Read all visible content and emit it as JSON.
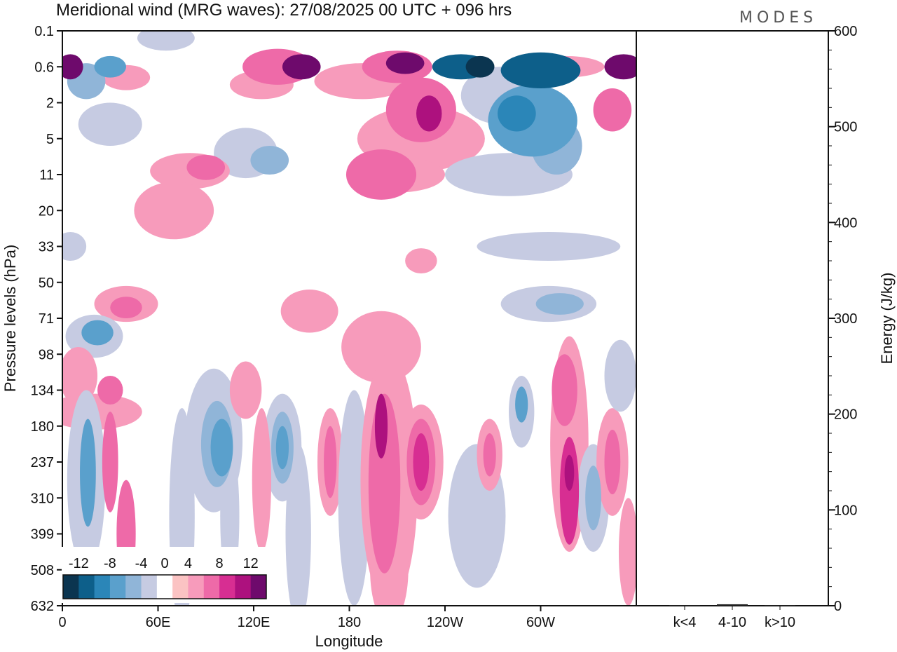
{
  "chart_data": {
    "type": "heatmap",
    "title": "Meridional wind (MRG waves):  27/08/2025  00 UTC  + 096 hrs",
    "xlabel": "Longitude",
    "ylabel": "Pressure levels (hPa)",
    "y2label": "Energy (J/kg)",
    "logo": "MODES",
    "x_ticks": [
      {
        "lon": 0,
        "label": "0"
      },
      {
        "lon": 60,
        "label": "60E"
      },
      {
        "lon": 120,
        "label": "120E"
      },
      {
        "lon": 180,
        "label": "180"
      },
      {
        "lon": 240,
        "label": "120W"
      },
      {
        "lon": 300,
        "label": "60W"
      }
    ],
    "xlim": [
      0,
      360
    ],
    "pressure_levels": [
      "0.1",
      "0.6",
      "2",
      "5",
      "11",
      "20",
      "33",
      "50",
      "71",
      "98",
      "134",
      "180",
      "237",
      "310",
      "399",
      "508",
      "632"
    ],
    "colorbar": {
      "labels": [
        "-12",
        "-8",
        "-4",
        "0",
        "4",
        "8",
        "12"
      ],
      "levels": [
        -14,
        -12,
        -10,
        -8,
        -6,
        -4,
        -2,
        2,
        4,
        6,
        8,
        10,
        12,
        14
      ],
      "colors": [
        "#0b3550",
        "#0d5f8a",
        "#2b86b8",
        "#5aa0cc",
        "#90b5d8",
        "#c6cbe2",
        "#ffffff",
        "#fbc3c3",
        "#f79bbb",
        "#ee6aa8",
        "#d72e92",
        "#ad117e",
        "#6e0a6c"
      ]
    },
    "contour_blobs": [
      {
        "lon": 5,
        "p": 1,
        "ry": 0.35,
        "rx": 8,
        "v": 12
      },
      {
        "lon": 15,
        "p": 1.4,
        "ry": 0.5,
        "rx": 12,
        "v": -6
      },
      {
        "lon": 30,
        "p": 1.0,
        "ry": 0.3,
        "rx": 10,
        "v": -8
      },
      {
        "lon": 40,
        "p": 1.3,
        "ry": 0.35,
        "rx": 15,
        "v": 4
      },
      {
        "lon": 65,
        "p": 0.2,
        "ry": 0.35,
        "rx": 18,
        "v": -4
      },
      {
        "lon": 125,
        "p": 1.5,
        "ry": 0.4,
        "rx": 20,
        "v": 4
      },
      {
        "lon": 135,
        "p": 1.0,
        "ry": 0.5,
        "rx": 22,
        "v": 6
      },
      {
        "lon": 150,
        "p": 1.0,
        "ry": 0.35,
        "rx": 12,
        "v": 12
      },
      {
        "lon": 188,
        "p": 1.4,
        "ry": 0.5,
        "rx": 30,
        "v": 4
      },
      {
        "lon": 210,
        "p": 1.0,
        "ry": 0.45,
        "rx": 22,
        "v": 6
      },
      {
        "lon": 215,
        "p": 0.9,
        "ry": 0.3,
        "rx": 12,
        "v": 12
      },
      {
        "lon": 225,
        "p": 3.0,
        "ry": 0.9,
        "rx": 40,
        "v": 4
      },
      {
        "lon": 200,
        "p": 4.0,
        "ry": 0.7,
        "rx": 22,
        "v": 6
      },
      {
        "lon": 225,
        "p": 2.2,
        "ry": 0.9,
        "rx": 22,
        "v": 6
      },
      {
        "lon": 230,
        "p": 2.3,
        "ry": 0.5,
        "rx": 8,
        "v": 10
      },
      {
        "lon": 250,
        "p": 1.0,
        "ry": 0.35,
        "rx": 18,
        "v": -12
      },
      {
        "lon": 262,
        "p": 1.0,
        "ry": 0.3,
        "rx": 9,
        "v": -14
      },
      {
        "lon": 300,
        "p": 1.1,
        "ry": 0.5,
        "rx": 25,
        "v": -12
      },
      {
        "lon": 275,
        "p": 1.8,
        "ry": 0.8,
        "rx": 25,
        "v": -4
      },
      {
        "lon": 295,
        "p": 2.5,
        "ry": 1.0,
        "rx": 28,
        "v": -8
      },
      {
        "lon": 285,
        "p": 2.3,
        "ry": 0.5,
        "rx": 12,
        "v": -10
      },
      {
        "lon": 310,
        "p": 3.2,
        "ry": 0.8,
        "rx": 16,
        "v": -6
      },
      {
        "lon": 280,
        "p": 4.0,
        "ry": 0.6,
        "rx": 40,
        "v": -4
      },
      {
        "lon": 315,
        "p": 1.0,
        "ry": 0.3,
        "rx": 25,
        "v": 4
      },
      {
        "lon": 352,
        "p": 1.0,
        "ry": 0.35,
        "rx": 12,
        "v": 14
      },
      {
        "lon": 345,
        "p": 2.2,
        "ry": 0.6,
        "rx": 12,
        "v": 6
      },
      {
        "lon": 30,
        "p": 2.6,
        "ry": 0.6,
        "rx": 20,
        "v": -4
      },
      {
        "lon": 115,
        "p": 3.4,
        "ry": 0.7,
        "rx": 20,
        "v": -4
      },
      {
        "lon": 130,
        "p": 3.6,
        "ry": 0.4,
        "rx": 12,
        "v": -6
      },
      {
        "lon": 80,
        "p": 3.9,
        "ry": 0.5,
        "rx": 25,
        "v": 4
      },
      {
        "lon": 90,
        "p": 3.8,
        "ry": 0.35,
        "rx": 12,
        "v": 6
      },
      {
        "lon": 70,
        "p": 5.0,
        "ry": 0.8,
        "rx": 25,
        "v": 4
      },
      {
        "lon": 210,
        "p": 4.0,
        "ry": 0.5,
        "rx": 30,
        "v": 4
      },
      {
        "lon": 305,
        "p": 6.0,
        "ry": 0.4,
        "rx": 45,
        "v": -4
      },
      {
        "lon": 5,
        "p": 6.0,
        "ry": 0.4,
        "rx": 10,
        "v": -4
      },
      {
        "lon": 225,
        "p": 6.4,
        "ry": 0.35,
        "rx": 10,
        "v": 4
      },
      {
        "lon": 40,
        "p": 7.6,
        "ry": 0.5,
        "rx": 20,
        "v": 4
      },
      {
        "lon": 40,
        "p": 7.7,
        "ry": 0.3,
        "rx": 10,
        "v": 6
      },
      {
        "lon": 20,
        "p": 8.5,
        "ry": 0.6,
        "rx": 18,
        "v": -4
      },
      {
        "lon": 22,
        "p": 8.4,
        "ry": 0.35,
        "rx": 10,
        "v": -8
      },
      {
        "lon": 155,
        "p": 7.8,
        "ry": 0.6,
        "rx": 18,
        "v": 4
      },
      {
        "lon": 200,
        "p": 8.8,
        "ry": 1.0,
        "rx": 25,
        "v": 4
      },
      {
        "lon": 305,
        "p": 7.6,
        "ry": 0.5,
        "rx": 30,
        "v": -4
      },
      {
        "lon": 312,
        "p": 7.6,
        "ry": 0.3,
        "rx": 15,
        "v": -6
      },
      {
        "lon": 10,
        "p": 9.6,
        "ry": 0.8,
        "rx": 12,
        "v": 4
      },
      {
        "lon": 20,
        "p": 10.6,
        "ry": 0.5,
        "rx": 30,
        "v": 4
      },
      {
        "lon": 30,
        "p": 10.0,
        "ry": 0.4,
        "rx": 8,
        "v": 6
      },
      {
        "lon": 15,
        "p": 12.5,
        "ry": 2.5,
        "rx": 12,
        "v": -4
      },
      {
        "lon": 16,
        "p": 12.3,
        "ry": 1.5,
        "rx": 5,
        "v": -8
      },
      {
        "lon": 30,
        "p": 12.0,
        "ry": 1.4,
        "rx": 5,
        "v": 6
      },
      {
        "lon": 40,
        "p": 14.0,
        "ry": 1.5,
        "rx": 6,
        "v": 6
      },
      {
        "lon": 75,
        "p": 13.5,
        "ry": 3.0,
        "rx": 8,
        "v": -4
      },
      {
        "lon": 95,
        "p": 11.4,
        "ry": 2.0,
        "rx": 18,
        "v": -4
      },
      {
        "lon": 97,
        "p": 11.5,
        "ry": 1.2,
        "rx": 10,
        "v": -6
      },
      {
        "lon": 100,
        "p": 11.6,
        "ry": 0.8,
        "rx": 7,
        "v": -8
      },
      {
        "lon": 105,
        "p": 13.5,
        "ry": 2.0,
        "rx": 6,
        "v": -4
      },
      {
        "lon": 115,
        "p": 10.0,
        "ry": 0.8,
        "rx": 10,
        "v": 4
      },
      {
        "lon": 138,
        "p": 11.6,
        "ry": 1.5,
        "rx": 12,
        "v": -4
      },
      {
        "lon": 138,
        "p": 11.6,
        "ry": 1.0,
        "rx": 7,
        "v": -6
      },
      {
        "lon": 138,
        "p": 11.6,
        "ry": 0.6,
        "rx": 4,
        "v": -8
      },
      {
        "lon": 125,
        "p": 12.5,
        "ry": 2.0,
        "rx": 6,
        "v": 4
      },
      {
        "lon": 148,
        "p": 14.0,
        "ry": 2.5,
        "rx": 8,
        "v": -4
      },
      {
        "lon": 168,
        "p": 12.0,
        "ry": 1.5,
        "rx": 8,
        "v": 4
      },
      {
        "lon": 168,
        "p": 12.0,
        "ry": 1.0,
        "rx": 4,
        "v": 6
      },
      {
        "lon": 183,
        "p": 13.0,
        "ry": 3.0,
        "rx": 10,
        "v": -4
      },
      {
        "lon": 205,
        "p": 12.5,
        "ry": 3.5,
        "rx": 18,
        "v": 4
      },
      {
        "lon": 202,
        "p": 12.6,
        "ry": 2.5,
        "rx": 10,
        "v": 6
      },
      {
        "lon": 200,
        "p": 11.0,
        "ry": 0.9,
        "rx": 4,
        "v": 10
      },
      {
        "lon": 225,
        "p": 12.0,
        "ry": 1.6,
        "rx": 14,
        "v": 4
      },
      {
        "lon": 225,
        "p": 12.0,
        "ry": 1.2,
        "rx": 9,
        "v": 6
      },
      {
        "lon": 225,
        "p": 12.0,
        "ry": 0.8,
        "rx": 5,
        "v": 8
      },
      {
        "lon": 205,
        "p": 15.0,
        "ry": 1.5,
        "rx": 12,
        "v": 4
      },
      {
        "lon": 260,
        "p": 13.5,
        "ry": 2.0,
        "rx": 18,
        "v": -4
      },
      {
        "lon": 268,
        "p": 11.8,
        "ry": 1.0,
        "rx": 8,
        "v": 4
      },
      {
        "lon": 268,
        "p": 11.8,
        "ry": 0.6,
        "rx": 4,
        "v": 6
      },
      {
        "lon": 288,
        "p": 10.6,
        "ry": 1.0,
        "rx": 8,
        "v": -4
      },
      {
        "lon": 288,
        "p": 10.4,
        "ry": 0.5,
        "rx": 4,
        "v": -8
      },
      {
        "lon": 318,
        "p": 11.5,
        "ry": 3.0,
        "rx": 12,
        "v": 4
      },
      {
        "lon": 315,
        "p": 10.0,
        "ry": 1.0,
        "rx": 8,
        "v": 6
      },
      {
        "lon": 318,
        "p": 12.8,
        "ry": 1.5,
        "rx": 6,
        "v": 8
      },
      {
        "lon": 318,
        "p": 12.3,
        "ry": 0.5,
        "rx": 3,
        "v": 10
      },
      {
        "lon": 333,
        "p": 13.0,
        "ry": 1.5,
        "rx": 10,
        "v": -4
      },
      {
        "lon": 333,
        "p": 13.0,
        "ry": 0.9,
        "rx": 5,
        "v": -6
      },
      {
        "lon": 345,
        "p": 12.0,
        "ry": 1.5,
        "rx": 10,
        "v": 4
      },
      {
        "lon": 345,
        "p": 12.0,
        "ry": 0.9,
        "rx": 5,
        "v": 6
      },
      {
        "lon": 350,
        "p": 9.6,
        "ry": 1.0,
        "rx": 10,
        "v": -4
      },
      {
        "lon": 355,
        "p": 14.5,
        "ry": 1.5,
        "rx": 6,
        "v": 4
      }
    ],
    "energy_axis": {
      "ylim": [
        0,
        600
      ],
      "ticks": [
        "0",
        "100",
        "200",
        "300",
        "400",
        "500",
        "600"
      ],
      "categories": [
        "k<4",
        "4-10",
        "k>10"
      ],
      "values": [
        0.5,
        1.5,
        0.3
      ]
    }
  }
}
